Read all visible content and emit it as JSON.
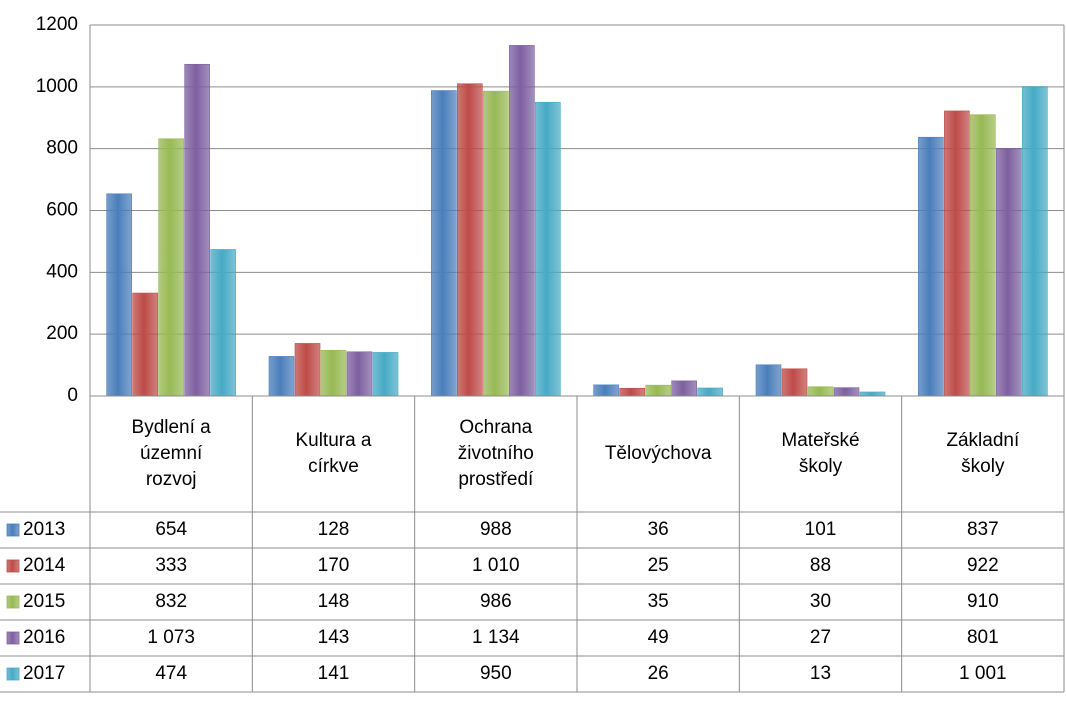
{
  "chart_data": {
    "type": "bar",
    "categories": [
      "Bydlení a územní rozvoj",
      "Kultura a církve",
      "Ochrana životního prostředí",
      "Tělovýchova",
      "Mateřské školy",
      "Základní školy"
    ],
    "series": [
      {
        "name": "2013",
        "color": "#4a7ebb",
        "values": [
          654,
          128,
          988,
          36,
          101,
          837
        ],
        "value_labels": [
          "654",
          "128",
          "988",
          "36",
          "101",
          "837"
        ]
      },
      {
        "name": "2014",
        "color": "#be4b48",
        "values": [
          333,
          170,
          1010,
          25,
          88,
          922
        ],
        "value_labels": [
          "333",
          "170",
          "1 010",
          "25",
          "88",
          "922"
        ]
      },
      {
        "name": "2015",
        "color": "#98b954",
        "values": [
          832,
          148,
          986,
          35,
          30,
          910
        ],
        "value_labels": [
          "832",
          "148",
          "986",
          "35",
          "30",
          "910"
        ]
      },
      {
        "name": "2016",
        "color": "#7d60a0",
        "values": [
          1073,
          143,
          1134,
          49,
          27,
          801
        ],
        "value_labels": [
          "1 073",
          "143",
          "1 134",
          "49",
          "27",
          "801"
        ]
      },
      {
        "name": "2017",
        "color": "#46aac5",
        "values": [
          474,
          141,
          950,
          26,
          13,
          1001
        ],
        "value_labels": [
          "474",
          "141",
          "950",
          "26",
          "13",
          "1 001"
        ]
      }
    ],
    "ylim": [
      0,
      1200
    ],
    "yticks": [
      0,
      200,
      400,
      600,
      800,
      1000,
      1200
    ],
    "grid": true
  }
}
